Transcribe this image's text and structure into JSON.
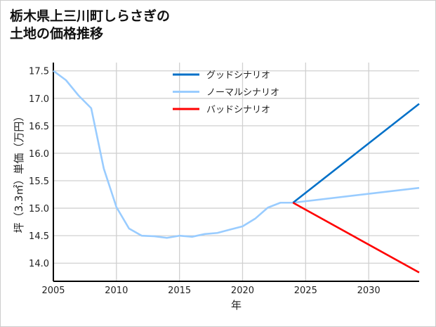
{
  "chart_data": {
    "type": "line",
    "title_lines": [
      "栃木県上三川町しらさぎの",
      "土地の価格推移"
    ],
    "xlabel": "年",
    "ylabel": "坪（3.3㎡）単価（万円）",
    "xlim": [
      2005,
      2034
    ],
    "ylim": [
      13.67,
      17.65
    ],
    "xticks": [
      2005,
      2010,
      2015,
      2020,
      2025,
      2030
    ],
    "yticks": [
      14.0,
      14.5,
      15.0,
      15.5,
      16.0,
      16.5,
      17.0,
      17.5
    ],
    "grid": true,
    "legend_position": "top-center",
    "series": [
      {
        "name": "グッドシナリオ",
        "color": "#0070C8",
        "x": [
          2024,
          2034
        ],
        "y": [
          15.1,
          16.9
        ]
      },
      {
        "name": "ノーマルシナリオ",
        "color": "#99CCFF",
        "x": [
          2005,
          2006,
          2007,
          2008,
          2009,
          2010,
          2011,
          2012,
          2013,
          2014,
          2015,
          2016,
          2017,
          2018,
          2019,
          2020,
          2021,
          2022,
          2023,
          2024,
          2034
        ],
        "y": [
          17.5,
          17.33,
          17.05,
          16.82,
          15.72,
          15.02,
          14.63,
          14.5,
          14.49,
          14.46,
          14.5,
          14.48,
          14.53,
          14.55,
          14.61,
          14.67,
          14.81,
          15.01,
          15.1,
          15.1,
          15.37
        ]
      },
      {
        "name": "バッドシナリオ",
        "color": "#FF0000",
        "x": [
          2024,
          2034
        ],
        "y": [
          15.1,
          13.83
        ]
      }
    ]
  }
}
